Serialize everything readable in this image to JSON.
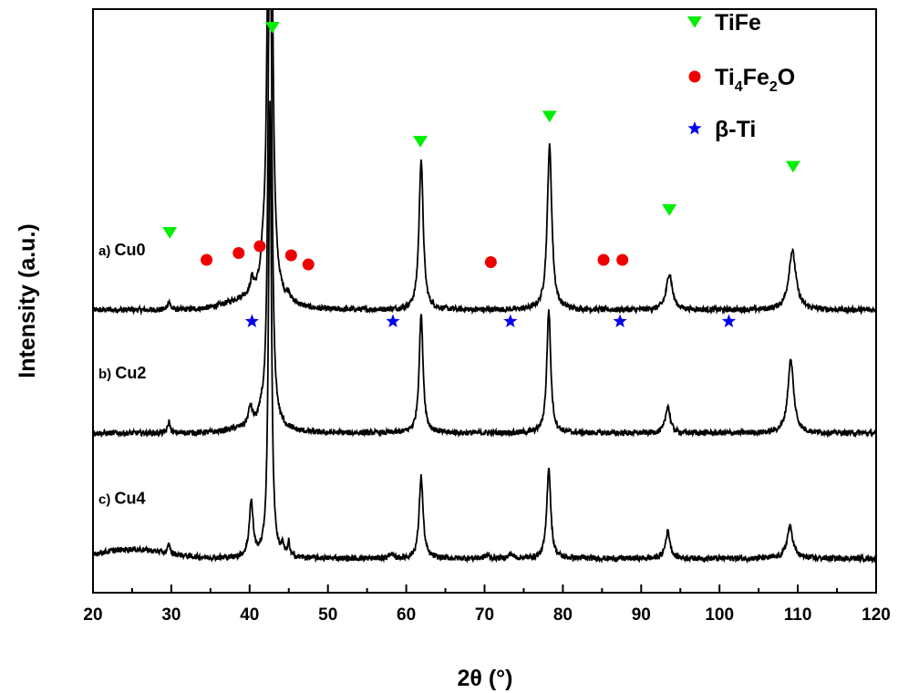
{
  "chart_data": {
    "type": "line",
    "title": "",
    "xlabel": "2θ (°)",
    "ylabel": "Intensity (a.u.)",
    "xlim": [
      20,
      120
    ],
    "x_ticks": [
      20,
      30,
      40,
      50,
      60,
      70,
      80,
      90,
      100,
      110,
      120
    ],
    "y_ticks": "none",
    "grid": false,
    "legend_position": "top-right",
    "legend": [
      {
        "key": "TiFe",
        "symbol": "triangle-down",
        "color": "#00ee00"
      },
      {
        "key": "Ti4Fe2O",
        "symbol": "circle",
        "color": "#ee0000"
      },
      {
        "key": "beta-Ti",
        "symbol": "star",
        "color": "#0000ee"
      }
    ],
    "series": [
      {
        "label_prefix": "a)",
        "label_name": "Cu0",
        "baseline": 0.62,
        "peaks": [
          [
            29.7,
            0.02,
            0.18
          ],
          [
            40.3,
            0.03,
            0.25
          ],
          [
            41.7,
            0.04,
            0.25
          ],
          [
            42.6,
            2.4,
            0.22
          ],
          [
            45.0,
            0.015,
            0.2
          ],
          [
            61.9,
            0.33,
            0.32
          ],
          [
            78.3,
            0.36,
            0.35
          ],
          [
            93.6,
            0.08,
            0.45
          ],
          [
            109.3,
            0.13,
            0.55
          ]
        ],
        "bump": [
          40.8,
          0.025,
          4.5
        ]
      },
      {
        "label_prefix": "b)",
        "label_name": "Cu2",
        "baseline": 0.35,
        "peaks": [
          [
            29.7,
            0.025,
            0.18
          ],
          [
            40.1,
            0.04,
            0.3
          ],
          [
            41.5,
            0.02,
            0.25
          ],
          [
            42.6,
            1.5,
            0.22
          ],
          [
            61.9,
            0.26,
            0.3
          ],
          [
            78.2,
            0.27,
            0.3
          ],
          [
            93.4,
            0.06,
            0.35
          ],
          [
            109.1,
            0.16,
            0.45
          ]
        ],
        "bump": [
          41,
          0.012,
          4
        ]
      },
      {
        "label_prefix": "c)",
        "label_name": "Cu4",
        "baseline": 0.075,
        "peaks": [
          [
            29.7,
            0.02,
            0.18
          ],
          [
            40.2,
            0.12,
            0.3
          ],
          [
            42.6,
            1.0,
            0.22
          ],
          [
            44.2,
            0.025,
            0.15
          ],
          [
            45.0,
            0.03,
            0.15
          ],
          [
            58.0,
            0.01,
            0.25
          ],
          [
            61.9,
            0.18,
            0.3
          ],
          [
            70.3,
            0.008,
            0.3
          ],
          [
            73.4,
            0.01,
            0.3
          ],
          [
            78.2,
            0.2,
            0.3
          ],
          [
            93.4,
            0.06,
            0.35
          ],
          [
            109.0,
            0.07,
            0.45
          ]
        ],
        "bump": [
          25,
          0.02,
          6
        ]
      }
    ],
    "markers": {
      "TiFe": [
        [
          29.8,
          0.79
        ],
        [
          42.9,
          1.24
        ],
        [
          61.8,
          0.99
        ],
        [
          78.3,
          1.045
        ],
        [
          93.6,
          0.84
        ],
        [
          109.4,
          0.935
        ]
      ],
      "Ti4Fe2O": [
        [
          34.5,
          0.73
        ],
        [
          38.6,
          0.745
        ],
        [
          41.3,
          0.76
        ],
        [
          45.3,
          0.74
        ],
        [
          47.5,
          0.72
        ],
        [
          70.8,
          0.725
        ],
        [
          85.2,
          0.73
        ],
        [
          87.6,
          0.73
        ]
      ],
      "beta-Ti": [
        [
          40.3,
          0.595
        ],
        [
          58.3,
          0.595
        ],
        [
          73.3,
          0.595
        ],
        [
          87.3,
          0.595
        ],
        [
          101.2,
          0.595
        ]
      ]
    }
  }
}
